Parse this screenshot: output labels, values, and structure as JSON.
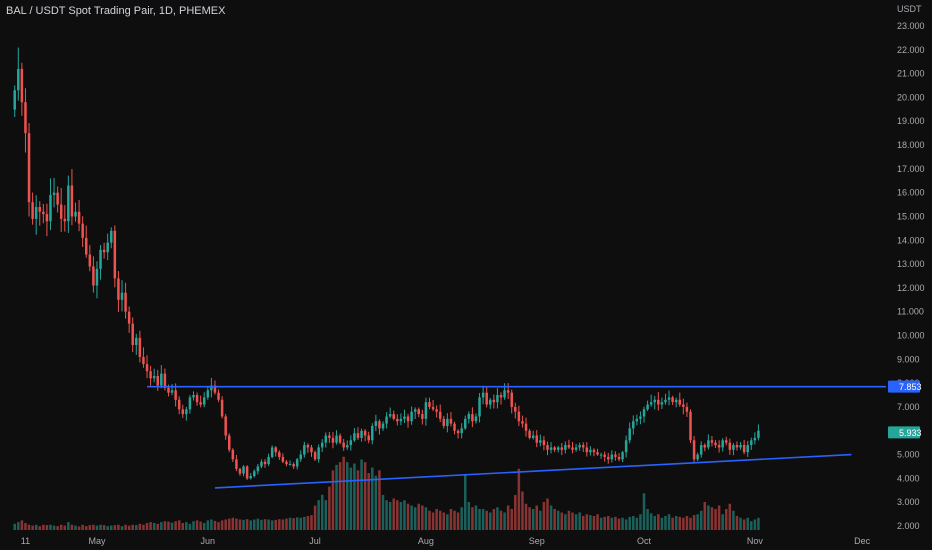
{
  "header": {
    "title": "BAL / USDT Spot Trading Pair, 1D, PHEMEX"
  },
  "colors": {
    "background": "#0e0e0e",
    "up": "#26a69a",
    "down": "#ef5350",
    "trendline": "#2962ff",
    "price_tag_bg": "#26a69a",
    "resistance_tag_bg": "#2962ff"
  },
  "chart_data": {
    "type": "candlestick",
    "unit_label": "USDT",
    "ylim": [
      2,
      23.5
    ],
    "y_ticks": [
      "2.000",
      "3.000",
      "4.000",
      "5.000",
      "6.000",
      "7.000",
      "8.000",
      "9.000",
      "10.000",
      "11.000",
      "12.000",
      "13.000",
      "14.000",
      "15.000",
      "16.000",
      "17.000",
      "18.000",
      "19.000",
      "20.000",
      "21.000",
      "22.000",
      "23.000"
    ],
    "x_labels": [
      {
        "label": "11",
        "day": 3
      },
      {
        "label": "May",
        "day": 23
      },
      {
        "label": "Jun",
        "day": 54
      },
      {
        "label": "Jul",
        "day": 84
      },
      {
        "label": "Aug",
        "day": 115
      },
      {
        "label": "Sep",
        "day": 146
      },
      {
        "label": "Oct",
        "day": 176
      },
      {
        "label": "Nov",
        "day": 207
      },
      {
        "label": "Dec",
        "day": 237
      }
    ],
    "xlim": [
      -3,
      242
    ],
    "close_series": [
      20.3,
      21.2,
      19.8,
      18.5,
      15.6,
      14.9,
      15.4,
      15.2,
      15.1,
      14.8,
      15.9,
      16.0,
      15.5,
      14.9,
      14.8,
      16.3,
      15.0,
      15.2,
      14.7,
      14.1,
      13.4,
      12.9,
      12.1,
      12.8,
      13.6,
      13.5,
      13.9,
      14.4,
      12.4,
      11.5,
      11.8,
      11.0,
      10.5,
      9.6,
      9.9,
      9.1,
      8.8,
      8.5,
      8.2,
      8.3,
      7.9,
      8.4,
      7.8,
      7.6,
      7.7,
      7.3,
      6.9,
      6.7,
      6.9,
      7.4,
      7.5,
      7.2,
      7.1,
      7.4,
      7.7,
      7.9,
      7.6,
      7.3,
      6.6,
      5.8,
      5.2,
      4.8,
      4.4,
      4.2,
      4.5,
      4.0,
      4.1,
      4.3,
      4.5,
      4.7,
      4.6,
      4.9,
      5.3,
      5.1,
      4.9,
      4.7,
      4.6,
      4.6,
      4.5,
      4.8,
      5.0,
      5.4,
      5.3,
      5.1,
      4.8,
      5.3,
      5.5,
      5.8,
      5.7,
      5.5,
      5.8,
      5.5,
      5.3,
      5.4,
      5.6,
      5.9,
      5.7,
      6.0,
      5.8,
      5.6,
      6.2,
      6.4,
      6.1,
      6.3,
      6.6,
      6.7,
      6.5,
      6.4,
      6.5,
      6.6,
      6.4,
      6.8,
      6.9,
      6.7,
      6.5,
      7.2,
      7.0,
      6.9,
      6.8,
      6.5,
      6.2,
      6.5,
      6.3,
      6.0,
      5.9,
      6.1,
      6.5,
      6.7,
      6.4,
      6.6,
      7.4,
      7.6,
      7.1,
      7.3,
      7.2,
      7.5,
      7.4,
      7.7,
      7.6,
      7.0,
      6.8,
      6.4,
      6.3,
      6.0,
      5.7,
      5.8,
      5.5,
      5.6,
      5.4,
      5.2,
      5.3,
      5.2,
      5.3,
      5.2,
      5.4,
      5.3,
      5.2,
      5.3,
      5.4,
      5.3,
      5.1,
      5.2,
      5.1,
      5.0,
      5.0,
      4.9,
      4.8,
      5.0,
      4.9,
      4.8,
      5.1,
      5.6,
      6.1,
      6.4,
      6.5,
      6.6,
      6.9,
      7.1,
      7.2,
      7.3,
      7.1,
      7.2,
      7.3,
      7.4,
      7.2,
      7.3,
      7.1,
      7.0,
      6.8,
      5.6,
      4.8,
      5.0,
      5.4,
      5.3,
      5.6,
      5.5,
      5.4,
      5.3,
      5.6,
      5.5,
      5.2,
      5.4,
      5.3,
      5.4,
      5.1,
      5.4,
      5.6,
      5.7,
      6.0
    ],
    "close_start_day": 0,
    "volume_series": [
      0.35,
      0.45,
      0.55,
      0.4,
      0.3,
      0.25,
      0.3,
      0.22,
      0.3,
      0.28,
      0.3,
      0.25,
      0.22,
      0.3,
      0.25,
      0.45,
      0.3,
      0.25,
      0.2,
      0.3,
      0.22,
      0.28,
      0.3,
      0.25,
      0.3,
      0.28,
      0.22,
      0.25,
      0.28,
      0.3,
      0.22,
      0.3,
      0.25,
      0.3,
      0.28,
      0.35,
      0.3,
      0.4,
      0.45,
      0.4,
      0.35,
      0.45,
      0.5,
      0.48,
      0.42,
      0.5,
      0.55,
      0.4,
      0.45,
      0.35,
      0.5,
      0.55,
      0.48,
      0.4,
      0.55,
      0.6,
      0.52,
      0.45,
      0.55,
      0.6,
      0.65,
      0.7,
      0.65,
      0.6,
      0.58,
      0.62,
      0.55,
      0.6,
      0.65,
      0.58,
      0.62,
      0.6,
      0.55,
      0.58,
      0.62,
      0.6,
      0.65,
      0.7,
      0.68,
      0.72,
      0.7,
      0.75,
      0.8,
      0.85,
      0.9,
      1.1,
      1.3,
      1.1,
      1.6,
      2.2,
      2.4,
      2.5,
      2.7,
      2.5,
      2.3,
      2.45,
      2.2,
      2.6,
      2.5,
      2.1,
      2.3,
      2.0,
      2.2,
      2.0,
      1.7,
      1.6,
      1.8,
      1.7,
      1.6,
      1.7,
      1.5,
      1.4,
      1.3,
      1.5,
      1.4,
      1.3,
      1.1,
      1.0,
      1.2,
      1.1,
      1.0,
      0.9,
      1.2,
      1.1,
      1.0,
      1.3,
      3.2,
      1.6,
      1.3,
      1.4,
      1.2,
      1.2,
      1.1,
      1.0,
      1.2,
      1.3,
      1.1,
      1.0,
      1.4,
      1.2,
      2.0,
      3.5,
      2.2,
      1.5,
      1.3,
      1.2,
      1.4,
      1.1,
      1.6,
      1.8,
      1.4,
      1.2,
      1.1,
      1.0,
      0.9,
      1.1,
      1.0,
      0.9,
      1.0,
      0.8,
      0.9,
      0.85,
      0.8,
      0.9,
      0.7,
      0.75,
      0.8,
      0.7,
      0.75,
      0.65,
      0.7,
      0.6,
      0.75,
      0.8,
      0.7,
      0.9,
      2.1,
      1.2,
      0.95,
      0.8,
      0.9,
      0.7,
      0.8,
      0.9,
      0.7,
      0.8,
      0.75,
      0.7,
      0.8,
      0.7,
      0.85,
      0.9,
      1.1,
      1.6,
      1.4,
      1.3,
      1.2,
      1.4,
      0.9,
      1.2,
      1.5,
      1.1,
      0.8,
      0.7,
      0.6,
      0.7,
      0.5,
      0.6,
      0.7
    ],
    "volume_max_units": 4,
    "resistance_level": 7.853,
    "resistance_label": "7.853",
    "last_price": 5.933,
    "last_price_label": "5.933",
    "support_line": {
      "x1_day": 56,
      "y1": 3.6,
      "x2_day": 234,
      "y2": 5.0
    },
    "resistance_start_day": 37
  }
}
